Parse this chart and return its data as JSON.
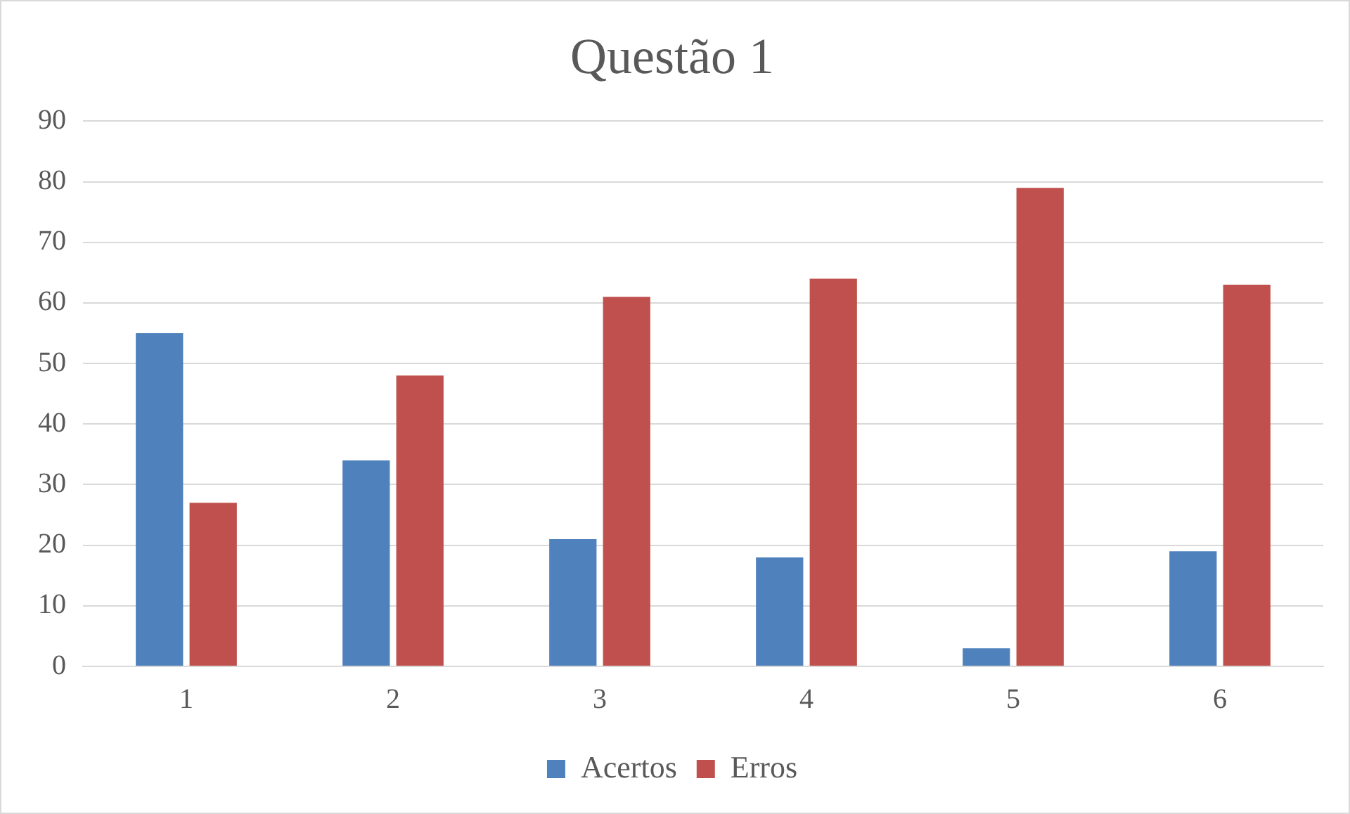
{
  "chart_data": {
    "type": "bar",
    "title": "Questão 1",
    "categories": [
      "1",
      "2",
      "3",
      "4",
      "5",
      "6"
    ],
    "series": [
      {
        "name": "Acertos",
        "color": "#4f81bd",
        "values": [
          55,
          34,
          21,
          18,
          3,
          19
        ]
      },
      {
        "name": "Erros",
        "color": "#c0504d",
        "values": [
          27,
          48,
          61,
          64,
          79,
          63
        ]
      }
    ],
    "ylim": [
      0,
      90
    ],
    "yticks": [
      0,
      10,
      20,
      30,
      40,
      50,
      60,
      70,
      80,
      90
    ],
    "grid": "y",
    "legend": "bottom"
  }
}
